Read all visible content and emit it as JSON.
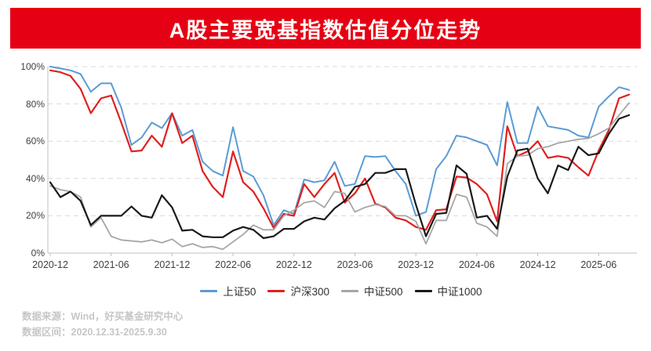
{
  "header": {
    "title": "A股主要宽基指数估值分位走势",
    "banner_color": "#E50113"
  },
  "footer": {
    "source": "数据来源：Wind，好买基金研究中心",
    "range": "数据区间：2020.12.31-2025.9.30"
  },
  "chart_data": {
    "type": "line",
    "title": "A股主要宽基指数估值分位走势",
    "x_start": "2020-12",
    "x_end": "2025-09",
    "x_step_months": 1,
    "n_points": 58,
    "ylim": [
      0,
      100
    ],
    "grid": "horizontal-dashed",
    "legend_position": "bottom",
    "axis_color": "#c0c0c0",
    "grid_color": "#d9d9d9",
    "x_ticks": [
      {
        "m": 0,
        "label": "2020-12"
      },
      {
        "m": 6,
        "label": "2021-06"
      },
      {
        "m": 12,
        "label": "2021-12"
      },
      {
        "m": 18,
        "label": "2022-06"
      },
      {
        "m": 24,
        "label": "2022-12"
      },
      {
        "m": 30,
        "label": "2023-06"
      },
      {
        "m": 36,
        "label": "2023-12"
      },
      {
        "m": 42,
        "label": "2024-06"
      },
      {
        "m": 48,
        "label": "2024-12"
      },
      {
        "m": 54,
        "label": "2025-06"
      }
    ],
    "y_ticks": [
      {
        "v": 0,
        "label": "0%"
      },
      {
        "v": 20,
        "label": "20%"
      },
      {
        "v": 40,
        "label": "40%"
      },
      {
        "v": 60,
        "label": "60%"
      },
      {
        "v": 80,
        "label": "80%"
      },
      {
        "v": 100,
        "label": "100%"
      }
    ],
    "series": [
      {
        "name": "上证50",
        "color": "#5B9BD5",
        "width": 2,
        "values": [
          100,
          99,
          98,
          96,
          86.5,
          91,
          91,
          78,
          58,
          62,
          70,
          67,
          75,
          63,
          66,
          49,
          44,
          41.5,
          67.5,
          44,
          41,
          31,
          15,
          23,
          21,
          39.5,
          38,
          39,
          49,
          36,
          37,
          52,
          51.5,
          52,
          44,
          37,
          20,
          22,
          45,
          52,
          63,
          62,
          60,
          58,
          47,
          81,
          59,
          59,
          78.5,
          68,
          67,
          66,
          63,
          62,
          78.5,
          84,
          89,
          87.5
        ]
      },
      {
        "name": "沪深300",
        "color": "#E02020",
        "width": 2.2,
        "values": [
          98,
          97,
          95,
          88,
          75,
          83,
          84.5,
          70,
          54.5,
          55,
          63,
          57,
          75,
          59,
          63,
          44,
          35.5,
          30,
          54.5,
          38,
          33,
          24,
          13.5,
          21,
          20,
          37,
          30,
          37,
          43,
          27,
          32,
          40,
          26.5,
          24.5,
          19,
          17.5,
          14,
          12.5,
          23,
          23.5,
          41,
          40.5,
          37,
          31.5,
          17,
          68,
          52,
          54.5,
          60,
          51,
          52,
          51,
          46,
          41.5,
          55,
          66,
          83,
          85
        ]
      },
      {
        "name": "中证500",
        "color": "#A6A6A6",
        "width": 1.8,
        "values": [
          36,
          34,
          33,
          30,
          14,
          19,
          9,
          7,
          6.5,
          6,
          7,
          5.5,
          7.5,
          3.5,
          5,
          3,
          3.5,
          2,
          6,
          10,
          15,
          12.5,
          12.5,
          20,
          23,
          27,
          28,
          24.5,
          33,
          32,
          22,
          24.5,
          26,
          25,
          20,
          20,
          17,
          5,
          17.5,
          17.5,
          31.5,
          30,
          16,
          14,
          9,
          48,
          52,
          52.5,
          56,
          57,
          59,
          60,
          61,
          61.5,
          64,
          67,
          74,
          80.5
        ]
      },
      {
        "name": "中证1000",
        "color": "#1A1A1A",
        "width": 2.2,
        "values": [
          38,
          30,
          33,
          28,
          15,
          20,
          20,
          20,
          25,
          20,
          19,
          31,
          24.5,
          12,
          12.5,
          9,
          8.5,
          8.5,
          12,
          14,
          12.5,
          8,
          9,
          13,
          13,
          17,
          19,
          18,
          24,
          28,
          35.5,
          37,
          43,
          43,
          45,
          45,
          26,
          9,
          21,
          21.5,
          47,
          42.5,
          19,
          20,
          13,
          41,
          55,
          56,
          40,
          32,
          47,
          44.5,
          57,
          52.5,
          53.5,
          64,
          72,
          74
        ]
      }
    ]
  }
}
